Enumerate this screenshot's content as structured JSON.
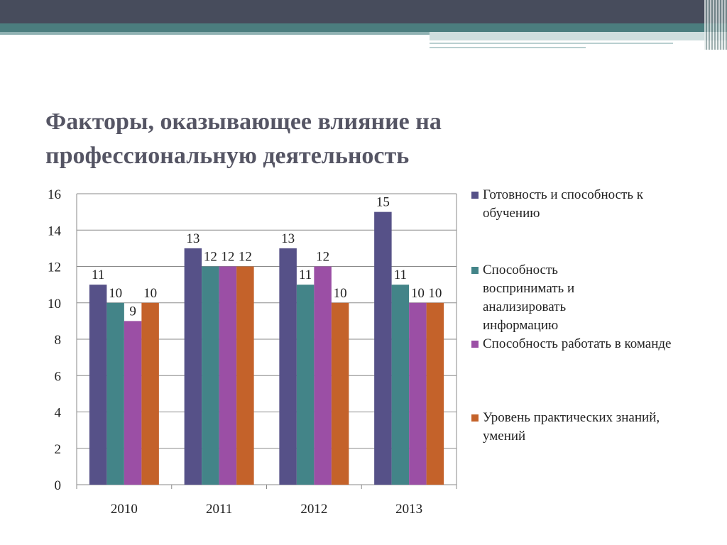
{
  "slide": {
    "title_line1": "Факторы, оказывающее влияние на",
    "title_line2": "профессиональную деятельность"
  },
  "chart_data": {
    "type": "bar",
    "categories": [
      "2010",
      "2011",
      "2012",
      "2013"
    ],
    "series": [
      {
        "name": "Готовность и способность к обучению",
        "color": "#565188",
        "values": [
          11,
          13,
          13,
          15
        ]
      },
      {
        "name": "Способность воспринимать и анализировать информацию",
        "color": "#438488",
        "values": [
          10,
          12,
          11,
          11
        ]
      },
      {
        "name": "Способность работать в команде",
        "color": "#9b4fa5",
        "values": [
          9,
          12,
          12,
          10
        ]
      },
      {
        "name": "Уровень практических знаний, умений",
        "color": "#c4622a",
        "values": [
          10,
          12,
          10,
          10
        ]
      }
    ],
    "ylim": [
      0,
      16
    ],
    "yticks": [
      "0",
      "2",
      "4",
      "6",
      "8",
      "10",
      "12",
      "14",
      "16"
    ],
    "grid": true,
    "legend": "right",
    "data_labels": true
  }
}
